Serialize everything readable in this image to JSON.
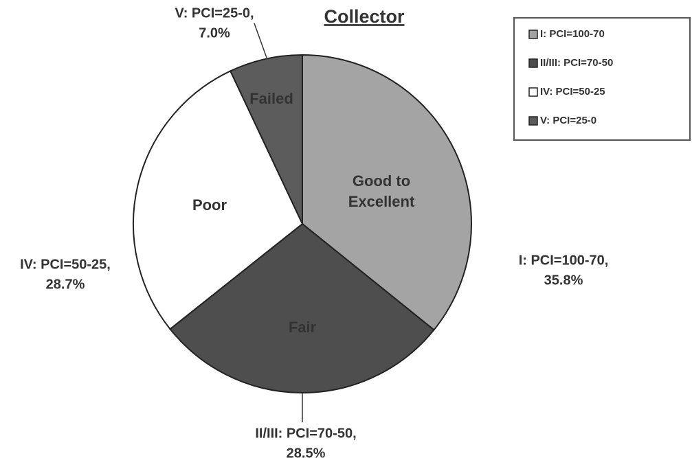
{
  "chart_data": {
    "type": "pie",
    "title": "Collector",
    "categories": [
      "I: PCI=100-70",
      "II/III:  PCI=70-50",
      "IV: PCI=50-25",
      "V: PCI=25-0"
    ],
    "values": [
      35.8,
      28.5,
      28.7,
      7.0
    ],
    "value_labels": [
      "35.8%",
      "28.5%",
      "28.7%",
      "7.0%"
    ],
    "data_labels": [
      "I: PCI=100-70,",
      "II/III: PCI=70-50,",
      "IV: PCI=50-25,",
      "V: PCI=25-0,"
    ],
    "slice_labels": [
      [
        "Good to",
        "Excellent"
      ],
      [
        "Fair"
      ],
      [
        "Poor"
      ],
      [
        "Failed"
      ]
    ],
    "colors": [
      "#a4a4a4",
      "#4e4e4e",
      "#ffffff",
      "#5c5c5c"
    ],
    "legend": "top-right"
  }
}
